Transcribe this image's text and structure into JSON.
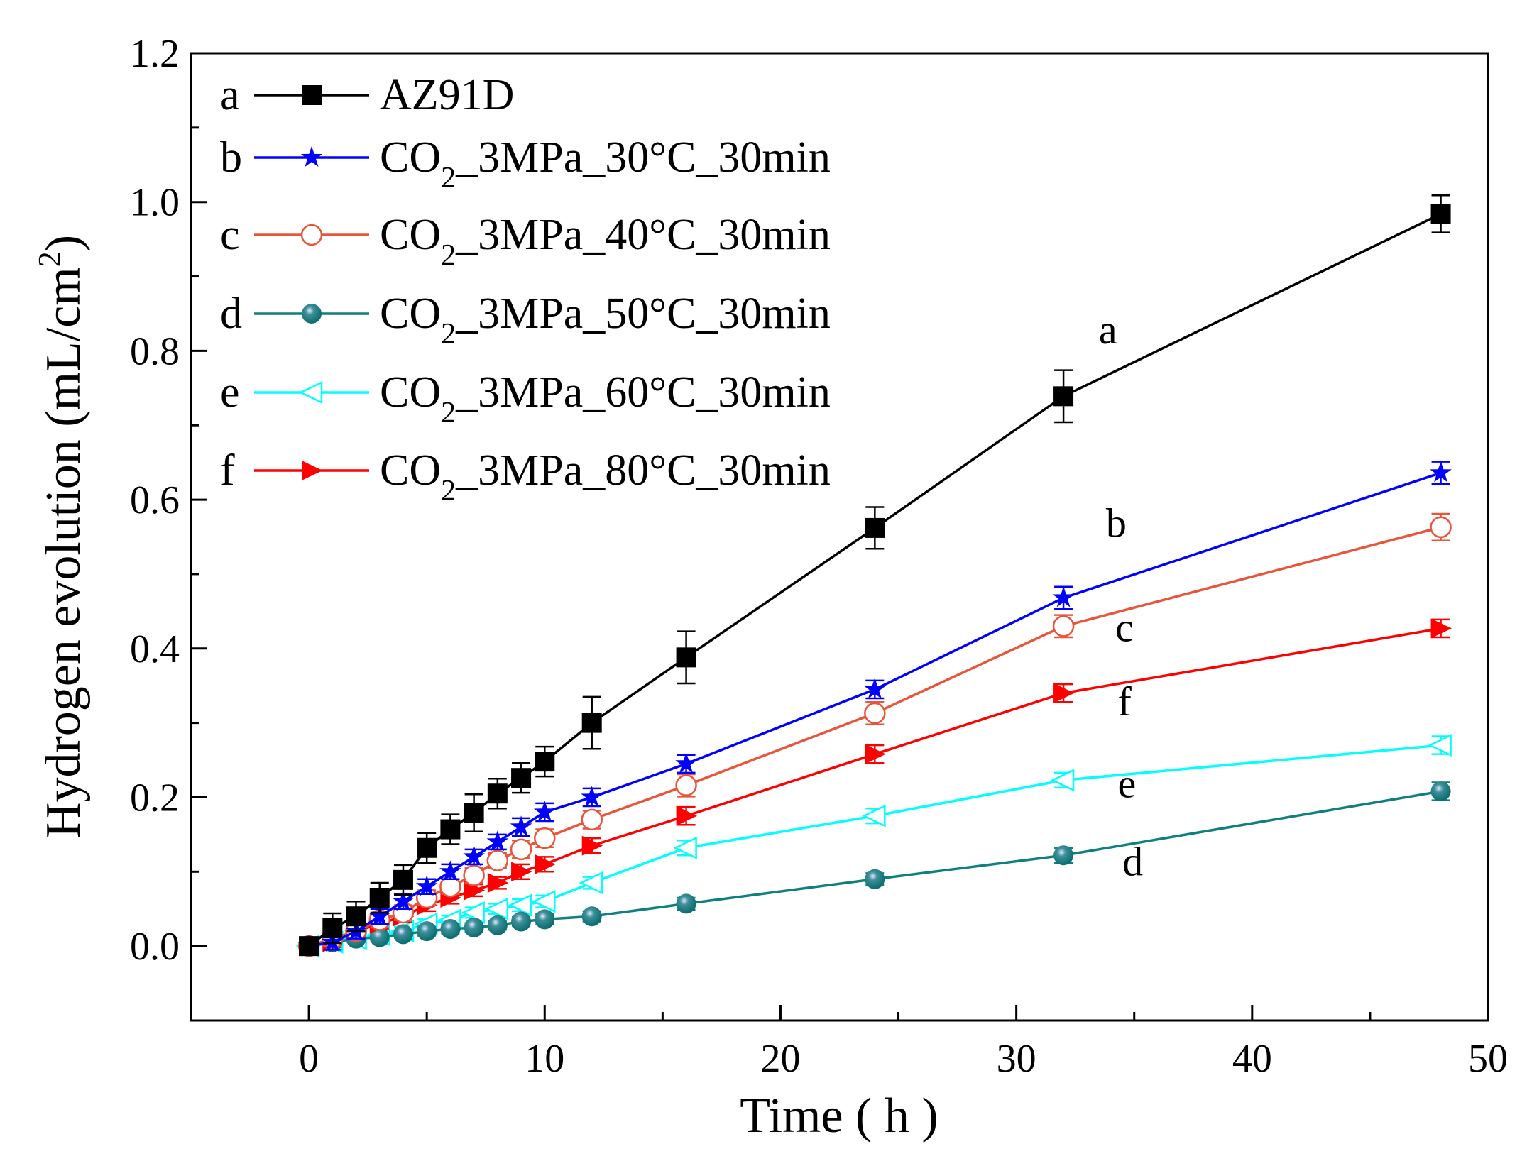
{
  "chart_data": {
    "type": "line",
    "title": "",
    "xlabel": "Time ( h )",
    "ylabel": {
      "main": "Hydrogen evolution (mL/cm",
      "sup": "2",
      "end": ")"
    },
    "xlim": [
      -5,
      50
    ],
    "ylim": [
      -0.1,
      1.2
    ],
    "xticks": [
      0,
      10,
      20,
      30,
      40,
      50
    ],
    "xtick_labels": [
      "0",
      "10",
      "20",
      "30",
      "40",
      "50"
    ],
    "yticks": [
      0.0,
      0.2,
      0.4,
      0.6,
      0.8,
      1.0,
      1.2
    ],
    "ytick_labels": [
      "0.0",
      "0.2",
      "0.4",
      "0.6",
      "0.8",
      "1.0",
      "1.2"
    ],
    "grid": false,
    "legend_position": "top-left",
    "x": [
      0,
      1,
      2,
      3,
      4,
      5,
      6,
      7,
      8,
      9,
      10,
      12,
      16,
      24,
      32,
      48
    ],
    "series": [
      {
        "id": "a",
        "name": "AZ91D",
        "label_parts": {
          "pre": "AZ91D",
          "sub": "",
          "post": ""
        },
        "color": "#000000",
        "marker": "square",
        "values": [
          0,
          0.024,
          0.04,
          0.065,
          0.089,
          0.132,
          0.157,
          0.179,
          0.205,
          0.226,
          0.248,
          0.3,
          0.388,
          0.562,
          0.739,
          0.984
        ],
        "errors": [
          0.005,
          0.02,
          0.02,
          0.02,
          0.02,
          0.02,
          0.02,
          0.025,
          0.02,
          0.02,
          0.02,
          0.035,
          0.035,
          0.028,
          0.035,
          0.025
        ],
        "curve_label": "a",
        "label_at": [
          33.5,
          0.81
        ]
      },
      {
        "id": "b",
        "name": "CO2_3MPa_30°C_30min",
        "label_parts": {
          "pre": "CO",
          "sub": "2",
          "post": "_3MPa_30°C_30min"
        },
        "color": "#0000ff",
        "marker": "star",
        "values": [
          0,
          0.005,
          0.02,
          0.04,
          0.06,
          0.08,
          0.1,
          0.12,
          0.14,
          0.16,
          0.18,
          0.2,
          0.245,
          0.345,
          0.468,
          0.636
        ],
        "errors": [
          0.005,
          0.01,
          0.01,
          0.01,
          0.01,
          0.01,
          0.01,
          0.01,
          0.01,
          0.012,
          0.012,
          0.012,
          0.012,
          0.012,
          0.015,
          0.015
        ],
        "curve_label": "b",
        "label_at": [
          33.8,
          0.55
        ]
      },
      {
        "id": "c",
        "name": "CO2_3MPa_40°C_30min",
        "label_parts": {
          "pre": "CO",
          "sub": "2",
          "post": "_3MPa_40°C_30min"
        },
        "color": "#e8553a",
        "marker": "circle-open",
        "values": [
          0,
          0.01,
          0.02,
          0.035,
          0.045,
          0.065,
          0.08,
          0.095,
          0.115,
          0.13,
          0.145,
          0.17,
          0.216,
          0.313,
          0.43,
          0.563
        ],
        "errors": [
          0.005,
          0.01,
          0.01,
          0.01,
          0.01,
          0.01,
          0.01,
          0.01,
          0.01,
          0.012,
          0.012,
          0.012,
          0.015,
          0.015,
          0.015,
          0.018
        ],
        "curve_label": "c",
        "label_at": [
          34.2,
          0.41
        ]
      },
      {
        "id": "d",
        "name": "CO2_3MPa_50°C_30min",
        "label_parts": {
          "pre": "CO",
          "sub": "2",
          "post": "_3MPa_50°C_30min"
        },
        "color": "#0f7f7f",
        "marker": "ball",
        "values": [
          0,
          0.005,
          0.01,
          0.012,
          0.016,
          0.02,
          0.023,
          0.025,
          0.028,
          0.033,
          0.036,
          0.04,
          0.057,
          0.09,
          0.122,
          0.208
        ],
        "errors": [
          0.003,
          0.005,
          0.005,
          0.005,
          0.005,
          0.006,
          0.006,
          0.006,
          0.006,
          0.006,
          0.007,
          0.007,
          0.008,
          0.008,
          0.01,
          0.012
        ],
        "curve_label": "d",
        "label_at": [
          34.5,
          0.095
        ]
      },
      {
        "id": "e",
        "name": "CO2_3MPa_60°C_30min",
        "label_parts": {
          "pre": "CO",
          "sub": "2",
          "post": "_3MPa_60°C_30min"
        },
        "color": "#00ffff",
        "marker": "triangle-left-open",
        "values": [
          0,
          0.005,
          0.01,
          0.015,
          0.02,
          0.03,
          0.035,
          0.045,
          0.05,
          0.055,
          0.06,
          0.085,
          0.132,
          0.175,
          0.223,
          0.27
        ],
        "errors": [
          0.003,
          0.005,
          0.005,
          0.005,
          0.006,
          0.006,
          0.006,
          0.007,
          0.007,
          0.008,
          0.008,
          0.008,
          0.01,
          0.01,
          0.01,
          0.012
        ],
        "curve_label": "e",
        "label_at": [
          34.3,
          0.2
        ]
      },
      {
        "id": "f",
        "name": "CO2_3MPa_80°C_30min",
        "label_parts": {
          "pre": "CO",
          "sub": "2",
          "post": "_3MPa_80°C_30min"
        },
        "color": "#ff0000",
        "marker": "triangle-right",
        "values": [
          0,
          0.005,
          0.02,
          0.03,
          0.04,
          0.055,
          0.065,
          0.075,
          0.085,
          0.1,
          0.11,
          0.135,
          0.175,
          0.258,
          0.34,
          0.427
        ],
        "errors": [
          0.003,
          0.006,
          0.006,
          0.007,
          0.008,
          0.008,
          0.008,
          0.008,
          0.008,
          0.01,
          0.01,
          0.01,
          0.012,
          0.012,
          0.012,
          0.012
        ],
        "curve_label": "f",
        "label_at": [
          34.3,
          0.31
        ]
      }
    ]
  }
}
